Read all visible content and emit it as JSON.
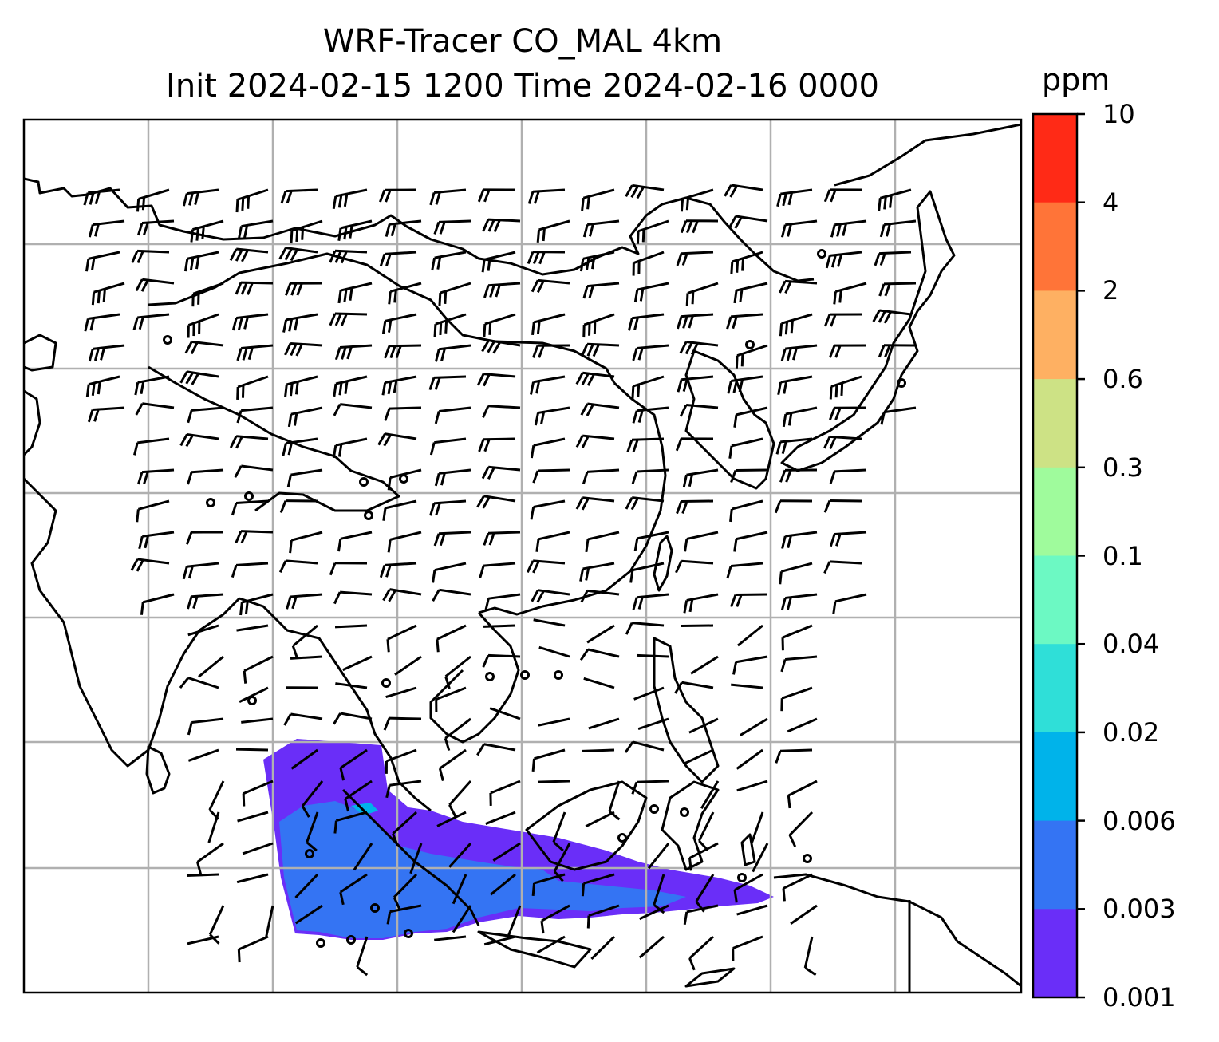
{
  "title": {
    "line1": "WRF-Tracer CO_MAL 4km",
    "line2": "Init 2024-02-15 1200 Time 2024-02-16 0000"
  },
  "colorbar": {
    "unit": "ppm",
    "ticks": [
      "10",
      "4",
      "2",
      "0.6",
      "0.3",
      "0.1",
      "0.04",
      "0.02",
      "0.006",
      "0.003",
      "0.001"
    ],
    "colors": [
      "#ff2a16",
      "#ff7438",
      "#feb062",
      "#cde285",
      "#9ffb9c",
      "#6cf9c3",
      "#2fdfd8",
      "#00b3ea",
      "#3474f3",
      "#6a2ef8"
    ]
  },
  "map": {
    "content_colors": {
      "coastline": "#000000",
      "gridline": "#b0b0b0",
      "barb": "#000000",
      "tracer_low": "#6a2ef8",
      "tracer_mid": "#3474f3",
      "tracer_high": "#00b3ea"
    },
    "calm_points_count": 24
  }
}
